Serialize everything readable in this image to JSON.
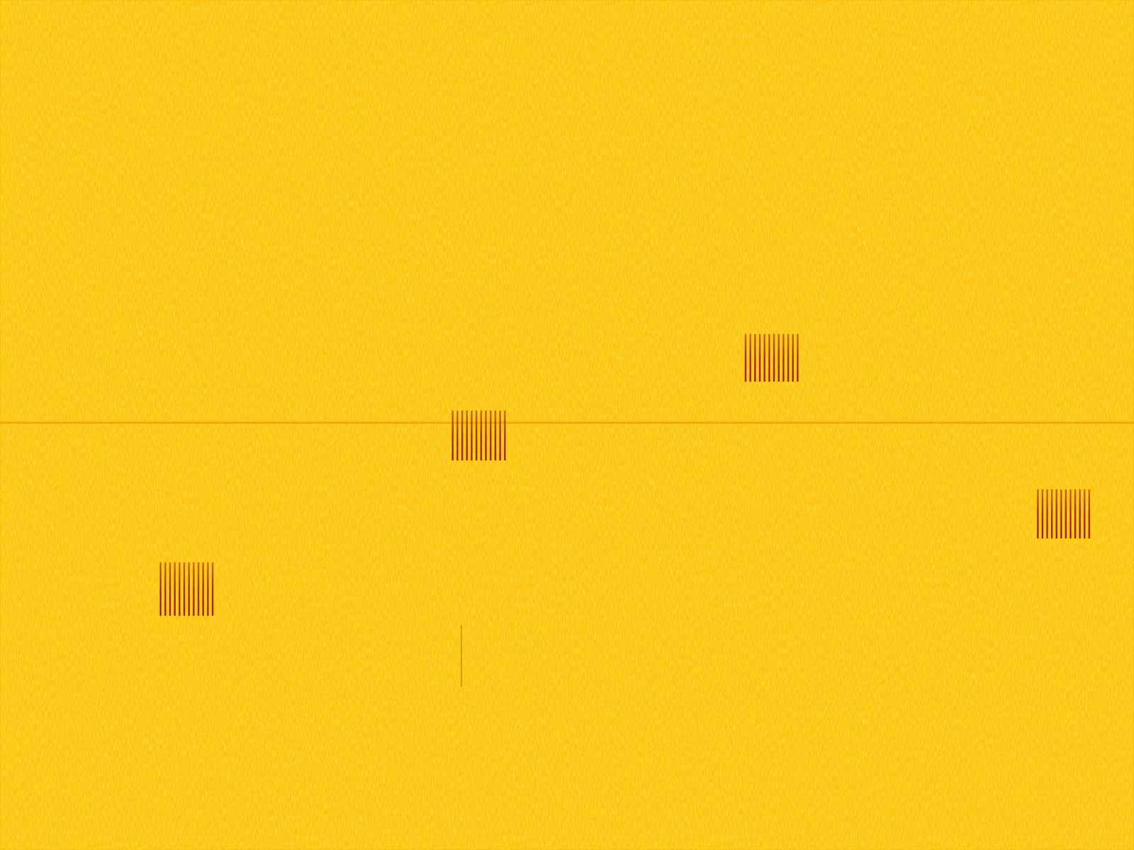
{
  "chart_data": {
    "type": "spectrogram",
    "xlim": [
      0,
      1
    ],
    "ylim": [
      0,
      1
    ],
    "tick_labels": false,
    "color": "#a81c06",
    "bursts": [
      {
        "start": 0.1416,
        "end": 0.1875,
        "low": 0.2755,
        "high": 0.3384,
        "pulses": 12
      },
      {
        "start": 0.3992,
        "end": 0.4452,
        "low": 0.4583,
        "high": 0.517,
        "pulses": 12
      },
      {
        "start": 0.6575,
        "end": 0.7034,
        "low": 0.551,
        "high": 0.6071,
        "pulses": 12
      },
      {
        "start": 0.9152,
        "end": 0.9605,
        "low": 0.3665,
        "high": 0.4243,
        "pulses": 12
      }
    ],
    "tones": [
      {
        "frequency": 0.5026
      }
    ],
    "clicks": [
      {
        "time": 0.4069,
        "low": 0.1922,
        "high": 0.2645
      }
    ]
  }
}
